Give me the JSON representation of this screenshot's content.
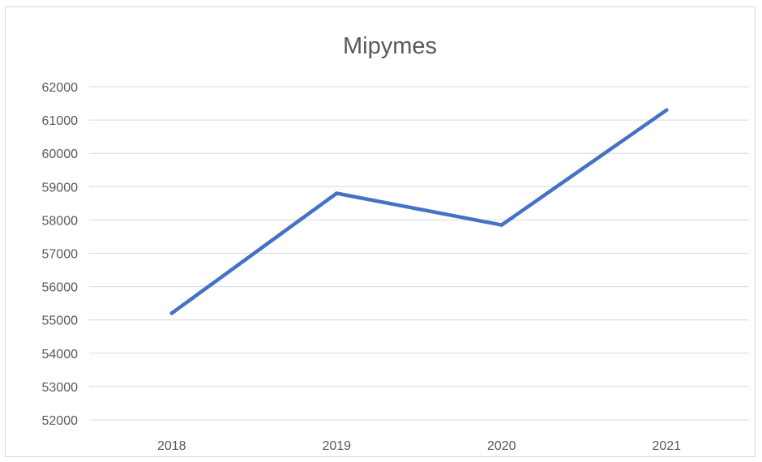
{
  "chart_data": {
    "type": "line",
    "title": "Mipymes",
    "xlabel": "",
    "ylabel": "",
    "categories": [
      "2018",
      "2019",
      "2020",
      "2021"
    ],
    "series": [
      {
        "values": [
          55200,
          58800,
          57850,
          61300
        ],
        "color": "#4472c4"
      }
    ],
    "ylim": [
      52000,
      62000
    ],
    "yticks": [
      "62000",
      "61000",
      "60000",
      "59000",
      "58000",
      "57000",
      "56000",
      "55000",
      "54000",
      "53000",
      "52000"
    ],
    "grid": true,
    "legend": "none"
  }
}
